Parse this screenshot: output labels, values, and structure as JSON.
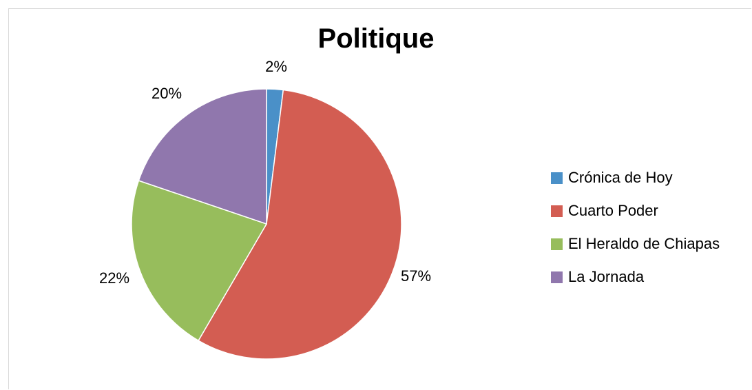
{
  "chart_data": {
    "type": "pie",
    "title": "Politique",
    "categories": [
      "Crónica de Hoy",
      "Cuarto Poder",
      "El Heraldo de Chiapas",
      "La Jornada"
    ],
    "values": [
      2,
      57,
      22,
      20
    ],
    "data_labels": [
      "2%",
      "57%",
      "22%",
      "20%"
    ],
    "colors": [
      "#4a90c8",
      "#d35d52",
      "#97bd5c",
      "#9077ad"
    ],
    "legend_placement": "right"
  }
}
